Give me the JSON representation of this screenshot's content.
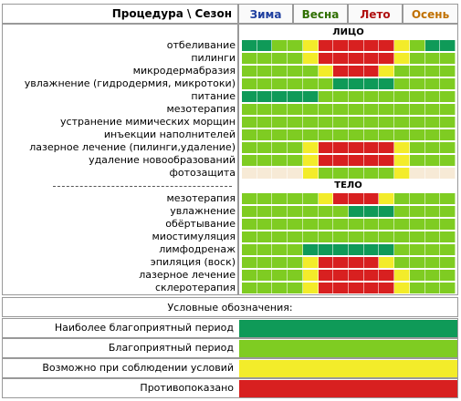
{
  "header": {
    "title": "Процедура \\ Сезон",
    "seasons": [
      {
        "label": "Зима",
        "color": "#1f3f9f"
      },
      {
        "label": "Весна",
        "color": "#2f6f00"
      },
      {
        "label": "Лето",
        "color": "#b01010"
      },
      {
        "label": "Осень",
        "color": "#c07000"
      }
    ]
  },
  "sections": {
    "face": "ЛИЦО",
    "body": "ТЕЛО"
  },
  "palette": {
    "4": "#0f9a58",
    "3": "#7fcc22",
    "2": "#f3ec2a",
    "1": "#d82020",
    "0": "#f7ead6"
  },
  "face_rows": [
    {
      "label": "отбеливание",
      "levels": [
        4,
        4,
        3,
        3,
        2,
        1,
        1,
        1,
        1,
        1,
        2,
        3,
        4,
        4
      ]
    },
    {
      "label": "пилинги",
      "levels": [
        3,
        3,
        3,
        3,
        2,
        1,
        1,
        1,
        1,
        1,
        2,
        3,
        3,
        3
      ]
    },
    {
      "label": "микродермабразия",
      "levels": [
        3,
        3,
        3,
        3,
        3,
        2,
        1,
        1,
        1,
        2,
        3,
        3,
        3,
        3
      ]
    },
    {
      "label": "увлажнение (гидродермия, микротоки)",
      "levels": [
        3,
        3,
        3,
        3,
        3,
        3,
        4,
        4,
        4,
        4,
        3,
        3,
        3,
        3
      ]
    },
    {
      "label": "питание",
      "levels": [
        4,
        4,
        4,
        4,
        4,
        3,
        3,
        3,
        3,
        3,
        3,
        3,
        3,
        3
      ]
    },
    {
      "label": "мезотерапия",
      "levels": [
        3,
        3,
        3,
        3,
        3,
        3,
        3,
        3,
        3,
        3,
        3,
        3,
        3,
        3
      ]
    },
    {
      "label": "устранение мимических морщин",
      "levels": [
        3,
        3,
        3,
        3,
        3,
        3,
        3,
        3,
        3,
        3,
        3,
        3,
        3,
        3
      ]
    },
    {
      "label": "инъекции наполнителей",
      "levels": [
        3,
        3,
        3,
        3,
        3,
        3,
        3,
        3,
        3,
        3,
        3,
        3,
        3,
        3
      ]
    },
    {
      "label": "лазерное лечение (пилинги,удаление)",
      "levels": [
        3,
        3,
        3,
        3,
        2,
        1,
        1,
        1,
        1,
        1,
        2,
        3,
        3,
        3
      ]
    },
    {
      "label": "удаление новообразований",
      "levels": [
        3,
        3,
        3,
        3,
        2,
        1,
        1,
        1,
        1,
        1,
        2,
        3,
        3,
        3
      ]
    },
    {
      "label": "фотозащита",
      "levels": [
        0,
        0,
        0,
        0,
        2,
        3,
        3,
        3,
        3,
        3,
        2,
        0,
        0,
        0
      ]
    }
  ],
  "body_rows": [
    {
      "label": "мезотерапия",
      "levels": [
        3,
        3,
        3,
        3,
        3,
        2,
        1,
        1,
        1,
        2,
        3,
        3,
        3,
        3
      ]
    },
    {
      "label": "увлажнение",
      "levels": [
        3,
        3,
        3,
        3,
        3,
        3,
        3,
        4,
        4,
        4,
        3,
        3,
        3,
        3
      ]
    },
    {
      "label": "обёртывание",
      "levels": [
        3,
        3,
        3,
        3,
        3,
        3,
        3,
        3,
        3,
        3,
        3,
        3,
        3,
        3
      ]
    },
    {
      "label": "миостимуляция",
      "levels": [
        3,
        3,
        3,
        3,
        3,
        3,
        3,
        3,
        3,
        3,
        3,
        3,
        3,
        3
      ]
    },
    {
      "label": "лимфодренаж",
      "levels": [
        3,
        3,
        3,
        3,
        4,
        4,
        4,
        4,
        4,
        4,
        3,
        3,
        3,
        3
      ]
    },
    {
      "label": "эпиляция (воск)",
      "levels": [
        3,
        3,
        3,
        3,
        2,
        1,
        1,
        1,
        1,
        2,
        3,
        3,
        3,
        3
      ]
    },
    {
      "label": "лазерное лечение",
      "levels": [
        3,
        3,
        3,
        3,
        2,
        1,
        1,
        1,
        1,
        1,
        2,
        3,
        3,
        3
      ]
    },
    {
      "label": "склеротерапия",
      "levels": [
        3,
        3,
        3,
        3,
        2,
        1,
        1,
        1,
        1,
        1,
        2,
        3,
        3,
        3
      ]
    }
  ],
  "legend": {
    "title": "Условные обозначения:",
    "items": [
      {
        "label": "Наиболее благоприятный период",
        "level": "4"
      },
      {
        "label": "Благоприятный период",
        "level": "3"
      },
      {
        "label": "Возможно при соблюдении условий",
        "level": "2"
      },
      {
        "label": "Противопоказано",
        "level": "1"
      }
    ]
  }
}
